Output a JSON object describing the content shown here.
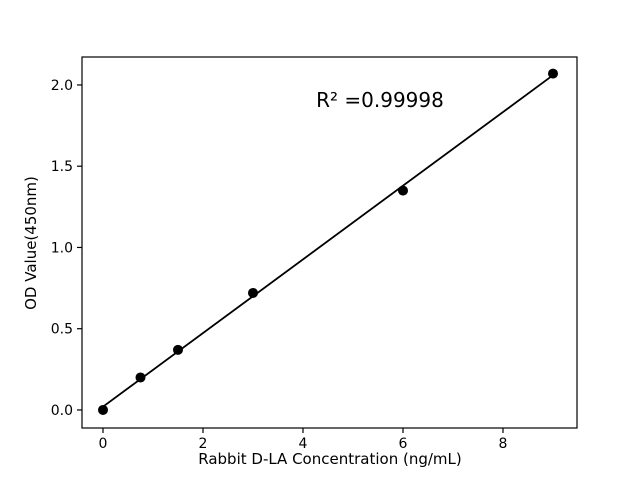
{
  "figure": {
    "background": "#ffffff",
    "foreground": "#000000"
  },
  "chart_data": {
    "type": "scatter",
    "title": "",
    "xlabel": "Rabbit D-LA Concentration (ng/mL)",
    "ylabel": "OD Value(450nm)",
    "x": [
      0,
      0.75,
      1.5,
      3,
      6,
      9
    ],
    "y": [
      0.0,
      0.2,
      0.37,
      0.72,
      1.35,
      2.07
    ],
    "marker": "circle",
    "point_color": "#000000",
    "trendline": {
      "type": "linear",
      "x1": 0,
      "y1": 0.02,
      "x2": 9,
      "y2": 2.06,
      "color": "#000000"
    },
    "annotation": {
      "text": "R² =0.99998",
      "x": 5.5,
      "y": 1.9
    },
    "x_ticks": {
      "values": [
        0,
        2,
        4,
        6,
        8
      ],
      "labels": [
        "0",
        "2",
        "4",
        "6",
        "8"
      ]
    },
    "y_ticks": {
      "values": [
        0,
        0.5,
        1,
        1.5,
        2
      ],
      "labels": [
        "0.0",
        "0.5",
        "1.0",
        "1.5",
        "2.0"
      ]
    },
    "xlim": [
      -0.42,
      9.48
    ],
    "ylim": [
      -0.111,
      2.172
    ],
    "grid": false,
    "legend": null
  }
}
